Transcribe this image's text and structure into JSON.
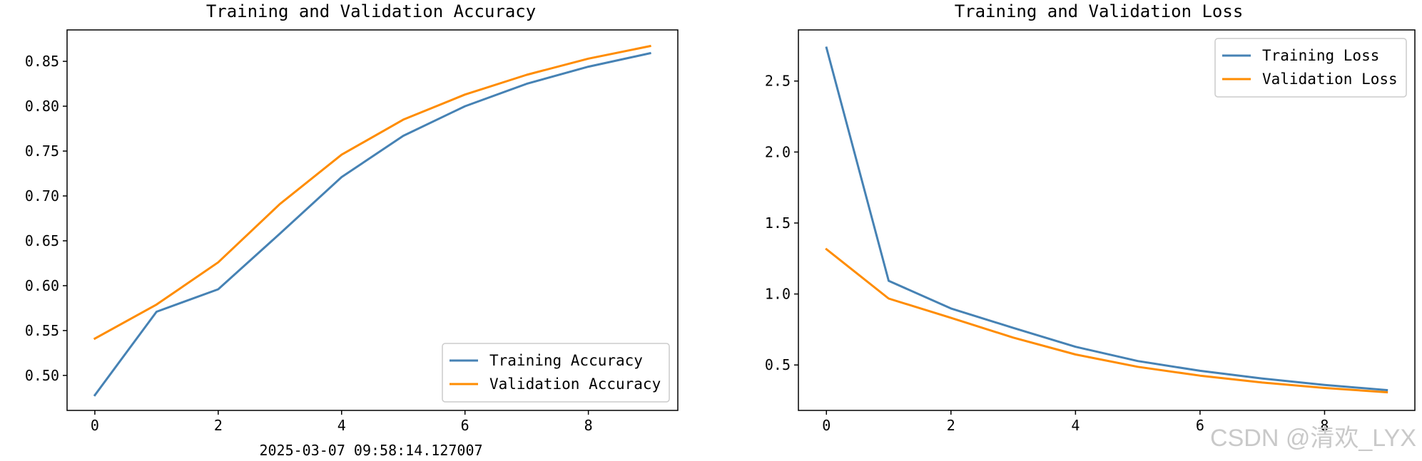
{
  "chart_data": [
    {
      "type": "line",
      "title": "Training and Validation Accuracy",
      "xlabel": "",
      "ylabel": "",
      "x": [
        0,
        1,
        2,
        3,
        4,
        5,
        6,
        7,
        8,
        9
      ],
      "xticks": [
        0,
        2,
        4,
        6,
        8
      ],
      "yticks": [
        0.5,
        0.55,
        0.6,
        0.65,
        0.7,
        0.75,
        0.8,
        0.85
      ],
      "xlim": [
        -0.45,
        9.45
      ],
      "ylim": [
        0.461,
        0.885
      ],
      "grid": false,
      "legend_position": "lower-right",
      "series": [
        {
          "name": "Training Accuracy",
          "color": "#4682b4",
          "values": [
            0.478,
            0.571,
            0.596,
            0.658,
            0.721,
            0.767,
            0.8,
            0.825,
            0.844,
            0.859
          ]
        },
        {
          "name": "Validation Accuracy",
          "color": "#ff8c00",
          "values": [
            0.541,
            0.579,
            0.626,
            0.691,
            0.746,
            0.785,
            0.813,
            0.835,
            0.853,
            0.867
          ]
        }
      ]
    },
    {
      "type": "line",
      "title": "Training and Validation Loss",
      "xlabel": "",
      "ylabel": "",
      "x": [
        0,
        1,
        2,
        3,
        4,
        5,
        6,
        7,
        8,
        9
      ],
      "xticks": [
        0,
        2,
        4,
        6,
        8
      ],
      "yticks": [
        0.5,
        1.0,
        1.5,
        2.0,
        2.5
      ],
      "xlim": [
        -0.45,
        9.45
      ],
      "ylim": [
        0.18,
        2.86
      ],
      "grid": false,
      "legend_position": "upper-right",
      "series": [
        {
          "name": "Training Loss",
          "color": "#4682b4",
          "values": [
            2.735,
            1.093,
            0.898,
            0.761,
            0.628,
            0.528,
            0.459,
            0.405,
            0.359,
            0.323
          ]
        },
        {
          "name": "Validation Loss",
          "color": "#ff8c00",
          "values": [
            1.315,
            0.968,
            0.832,
            0.693,
            0.574,
            0.487,
            0.425,
            0.376,
            0.338,
            0.308
          ]
        }
      ]
    }
  ],
  "caption": "2025-03-07 09:58:14.127007",
  "watermark": "CSDN @清欢_LYX"
}
